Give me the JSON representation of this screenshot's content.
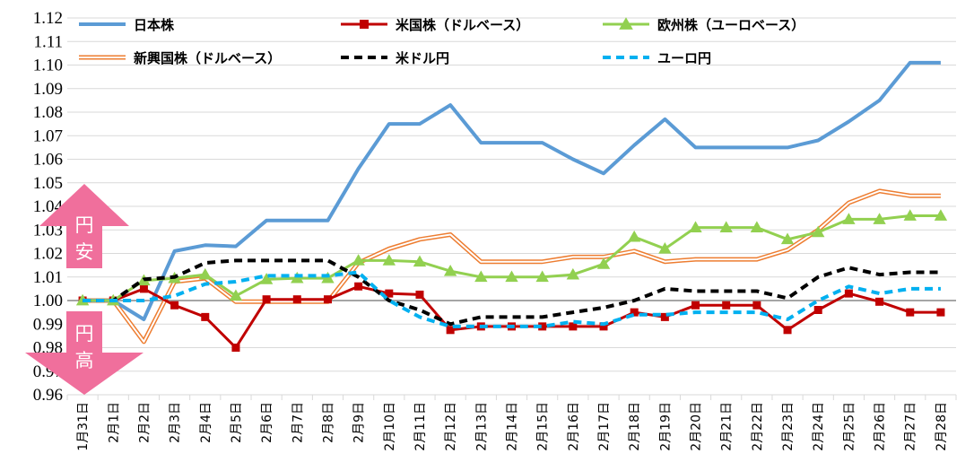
{
  "chart_data": {
    "type": "line",
    "title": "",
    "xlabel": "",
    "ylabel": "",
    "ylim": [
      0.96,
      1.12
    ],
    "yticks": [
      "0.96",
      "0.97",
      "0.98",
      "0.99",
      "1.00",
      "1.01",
      "1.02",
      "1.03",
      "1.04",
      "1.05",
      "1.06",
      "1.07",
      "1.08",
      "1.09",
      "1.10",
      "1.11",
      "1.12"
    ],
    "categories": [
      "1月31日",
      "2月1日",
      "2月2日",
      "2月3日",
      "2月4日",
      "2月5日",
      "2月6日",
      "2月7日",
      "2月8日",
      "2月9日",
      "2月10日",
      "2月11日",
      "2月12日",
      "2月13日",
      "2月14日",
      "2月15日",
      "2月16日",
      "2月17日",
      "2月18日",
      "2月19日",
      "2月20日",
      "2月21日",
      "2月22日",
      "2月23日",
      "2月24日",
      "2月25日",
      "2月26日",
      "2月27日",
      "2月28日"
    ],
    "series": [
      {
        "name": "日本株",
        "color": "#5b9bd5",
        "style": "solid",
        "values": [
          1.0,
          1.0,
          0.992,
          1.021,
          1.0235,
          1.023,
          1.034,
          1.034,
          1.034,
          1.056,
          1.075,
          1.075,
          1.083,
          1.067,
          1.067,
          1.067,
          1.06,
          1.054,
          1.066,
          1.077,
          1.065,
          1.065,
          1.065,
          1.065,
          1.068,
          1.076,
          1.085,
          1.101,
          1.101
        ]
      },
      {
        "name": "米国株（ドルベース）",
        "color": "#c00000",
        "style": "solid-square",
        "values": [
          1.0,
          1.0,
          1.005,
          0.998,
          0.993,
          0.98,
          1.0005,
          1.0005,
          1.0005,
          1.006,
          1.003,
          1.0025,
          0.9875,
          0.989,
          0.989,
          0.989,
          0.989,
          0.989,
          0.995,
          0.993,
          0.998,
          0.998,
          0.998,
          0.9875,
          0.996,
          1.003,
          0.9995,
          0.995,
          0.995
        ]
      },
      {
        "name": "欧州株（ユーロベース）",
        "color": "#92d050",
        "style": "solid-triangle",
        "values": [
          1.0,
          1.0,
          1.0085,
          1.0095,
          1.011,
          1.002,
          1.009,
          1.0095,
          1.0095,
          1.017,
          1.017,
          1.0165,
          1.0125,
          1.01,
          1.01,
          1.01,
          1.011,
          1.0155,
          1.027,
          1.022,
          1.031,
          1.031,
          1.031,
          1.026,
          1.029,
          1.0345,
          1.0345,
          1.036,
          1.036
        ]
      },
      {
        "name": "新興国株（ドルベース）",
        "color": "#ed7d31",
        "style": "double",
        "values": [
          1.0,
          1.0,
          0.9825,
          1.008,
          1.0095,
          0.9995,
          0.9995,
          0.9995,
          0.9995,
          1.016,
          1.022,
          1.026,
          1.028,
          1.0165,
          1.0165,
          1.0165,
          1.0185,
          1.0185,
          1.021,
          1.0165,
          1.0175,
          1.0175,
          1.0175,
          1.0215,
          1.03,
          1.0415,
          1.0465,
          1.0445,
          1.0445
        ]
      },
      {
        "name": "米ドル円",
        "color": "#000000",
        "style": "dashed",
        "values": [
          1.0,
          1.0,
          1.009,
          1.01,
          1.016,
          1.017,
          1.017,
          1.017,
          1.017,
          1.01,
          1.0,
          0.996,
          0.99,
          0.993,
          0.993,
          0.993,
          0.995,
          0.997,
          1.0,
          1.005,
          1.004,
          1.004,
          1.004,
          1.001,
          1.01,
          1.014,
          1.011,
          1.012,
          1.012
        ]
      },
      {
        "name": "ユーロ円",
        "color": "#00b0f0",
        "style": "dashed",
        "values": [
          1.0,
          1.0,
          1.0,
          1.002,
          1.007,
          1.008,
          1.0105,
          1.0105,
          1.0105,
          1.012,
          1.0,
          0.993,
          0.989,
          0.989,
          0.989,
          0.989,
          0.991,
          0.99,
          0.994,
          0.994,
          0.995,
          0.995,
          0.995,
          0.992,
          1.0,
          1.006,
          1.003,
          1.005,
          1.005
        ]
      }
    ],
    "annotations": [
      {
        "text": "円安",
        "direction": "up",
        "color": "#f06f9c"
      },
      {
        "text": "円高",
        "direction": "down",
        "color": "#f06f9c"
      }
    ],
    "grid": true,
    "legend": "top"
  }
}
